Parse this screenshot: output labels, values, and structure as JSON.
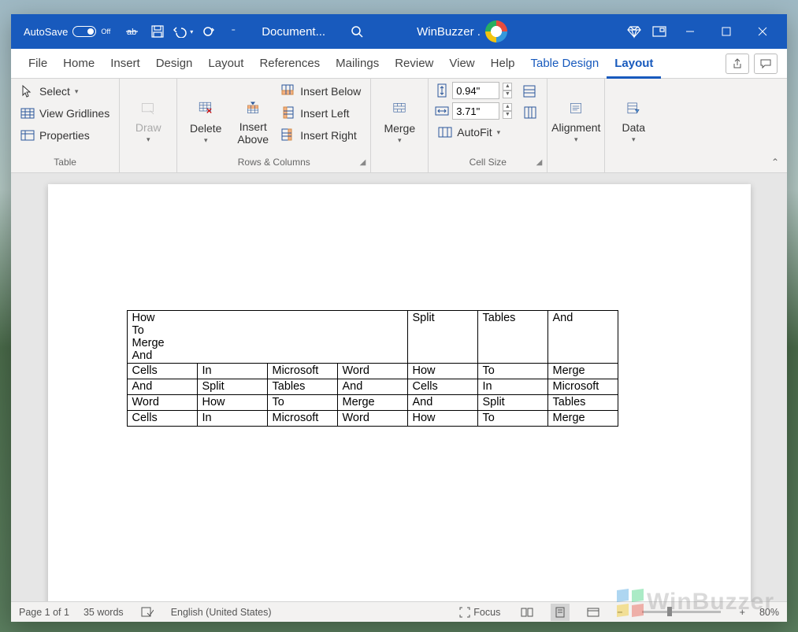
{
  "titlebar": {
    "autosave_label": "AutoSave",
    "autosave_state": "Off",
    "doc_title": "Document...",
    "site_name": "WinBuzzer ."
  },
  "tabs": {
    "file": "File",
    "home": "Home",
    "insert": "Insert",
    "design": "Design",
    "layout": "Layout",
    "references": "References",
    "mailings": "Mailings",
    "review": "Review",
    "view": "View",
    "help": "Help",
    "table_design": "Table Design",
    "table_layout": "Layout"
  },
  "ribbon": {
    "table_group": {
      "label": "Table",
      "select": "Select",
      "view_gridlines": "View Gridlines",
      "properties": "Properties"
    },
    "draw_group": {
      "draw": "Draw"
    },
    "rows_cols_group": {
      "label": "Rows & Columns",
      "delete": "Delete",
      "insert_above": "Insert Above",
      "insert_below": "Insert Below",
      "insert_left": "Insert Left",
      "insert_right": "Insert Right"
    },
    "merge_group": {
      "merge": "Merge"
    },
    "cell_size_group": {
      "label": "Cell Size",
      "height": "0.94\"",
      "width": "3.71\"",
      "autofit": "AutoFit"
    },
    "alignment_group": {
      "alignment": "Alignment"
    },
    "data_group": {
      "data": "Data"
    }
  },
  "document": {
    "table": {
      "row1_merged": "How\nTo\nMerge\nAnd",
      "row1": [
        "Split",
        "Tables",
        "And"
      ],
      "rows": [
        [
          "Cells",
          "In",
          "Microsoft",
          "Word",
          "How",
          "To",
          "Merge"
        ],
        [
          "And",
          "Split",
          "Tables",
          "And",
          "Cells",
          "In",
          "Microsoft"
        ],
        [
          "Word",
          "How",
          "To",
          "Merge",
          "And",
          "Split",
          "Tables"
        ],
        [
          "Cells",
          "In",
          "Microsoft",
          "Word",
          "How",
          "To",
          "Merge"
        ]
      ]
    }
  },
  "statusbar": {
    "page": "Page 1 of 1",
    "words": "35 words",
    "language": "English (United States)",
    "focus": "Focus",
    "zoom": "80%"
  },
  "watermark": "WinBuzzer"
}
